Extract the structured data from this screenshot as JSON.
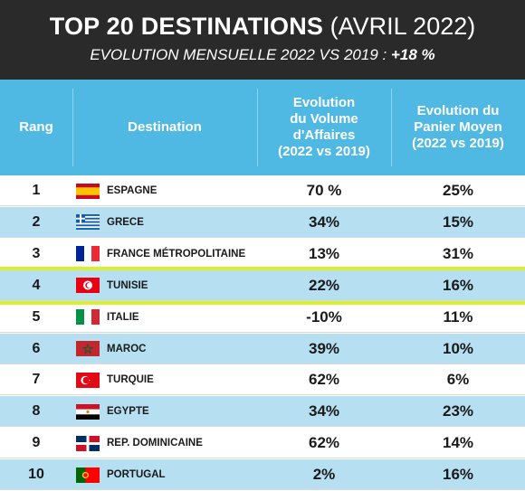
{
  "header": {
    "title_bold": "TOP 20 DESTINATIONS",
    "title_rest": "(AVRIL 2022)",
    "subtitle": "EVOLUTION MENSUELLE 2022 VS 2019 :",
    "subtitle_value": "+18 %"
  },
  "columns": {
    "rank": "Rang",
    "destination": "Destination",
    "volume": [
      "Evolution",
      "du Volume",
      "d'Affaires",
      "(2022 vs 2019)"
    ],
    "basket": [
      "Evolution du",
      "Panier Moyen",
      "(2022 vs 2019)"
    ]
  },
  "colors": {
    "title_band": "#2a2a2a",
    "header_band": "#4fb8e3",
    "alt_row": "#b6dff2",
    "highlight": "#d9f02e"
  },
  "highlighted_rank": "4",
  "chart_data": {
    "type": "table",
    "title": "TOP 20 DESTINATIONS (AVRIL 2022)",
    "subtitle": "EVOLUTION MENSUELLE 2022 VS 2019 : +18 %",
    "columns": [
      "Rang",
      "Destination",
      "Evolution du Volume d'Affaires (2022 vs 2019)",
      "Evolution du Panier Moyen (2022 vs 2019)"
    ],
    "rows": [
      {
        "rank": "1",
        "destination": "ESPAGNE",
        "flag": "spain-flag-icon",
        "volume": "70 %",
        "basket": "25%"
      },
      {
        "rank": "2",
        "destination": "GRECE",
        "flag": "greece-flag-icon",
        "volume": "34%",
        "basket": "15%"
      },
      {
        "rank": "3",
        "destination": "FRANCE MÉTROPOLITAINE",
        "flag": "france-flag-icon",
        "volume": "13%",
        "basket": "31%"
      },
      {
        "rank": "4",
        "destination": "TUNISIE",
        "flag": "tunisia-flag-icon",
        "volume": "22%",
        "basket": "16%"
      },
      {
        "rank": "5",
        "destination": "ITALIE",
        "flag": "italy-flag-icon",
        "volume": "-10%",
        "basket": "11%"
      },
      {
        "rank": "6",
        "destination": "MAROC",
        "flag": "morocco-flag-icon",
        "volume": "39%",
        "basket": "10%"
      },
      {
        "rank": "7",
        "destination": "TURQUIE",
        "flag": "turkey-flag-icon",
        "volume": "62%",
        "basket": "6%"
      },
      {
        "rank": "8",
        "destination": "EGYPTE",
        "flag": "egypt-flag-icon",
        "volume": "34%",
        "basket": "23%"
      },
      {
        "rank": "9",
        "destination": "REP. DOMINICAINE",
        "flag": "dominican-republic-flag-icon",
        "volume": "62%",
        "basket": "14%"
      },
      {
        "rank": "10",
        "destination": "PORTUGAL",
        "flag": "portugal-flag-icon",
        "volume": "2%",
        "basket": "16%"
      }
    ]
  }
}
